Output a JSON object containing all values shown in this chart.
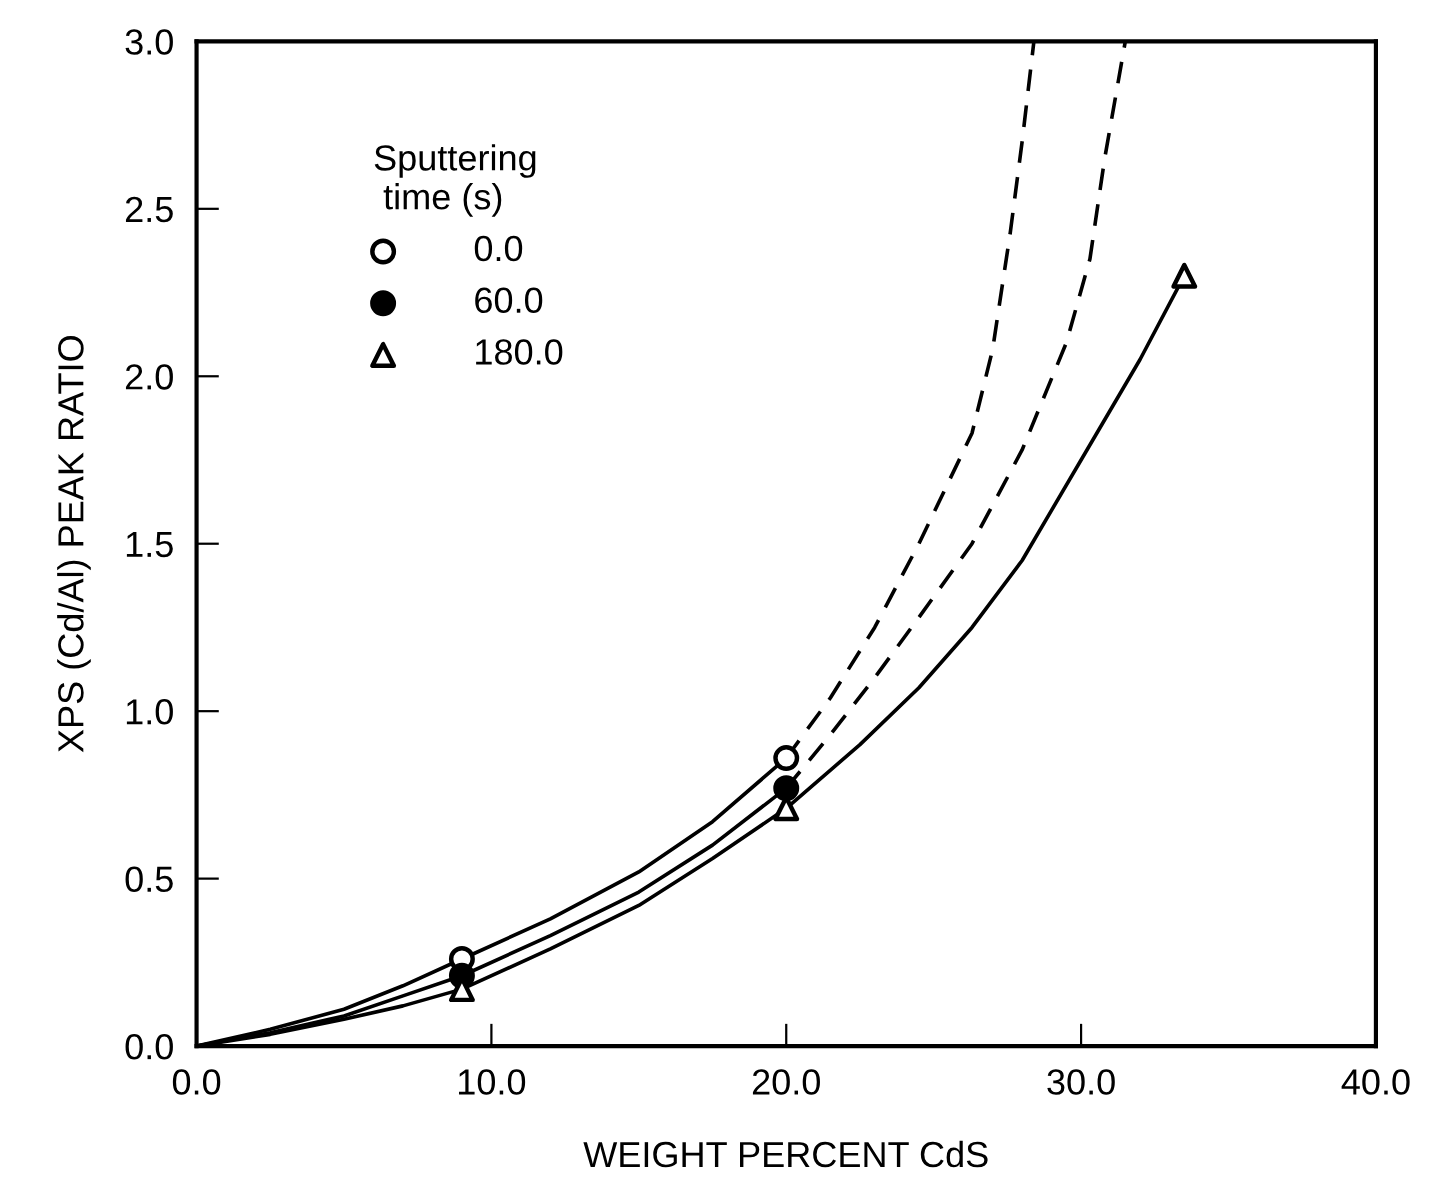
{
  "chart_data": {
    "type": "scatter",
    "xlabel": "WEIGHT PERCENT CdS",
    "ylabel": "XPS (Cd/Al) PEAK RATIO",
    "legend_title": "Sputtering\n time (s)",
    "legend": "top left",
    "xlim": [
      0,
      40
    ],
    "ylim": [
      0,
      3
    ],
    "xticks": [
      {
        "value": 0,
        "label": "0.0"
      },
      {
        "value": 10,
        "label": "10.0"
      },
      {
        "value": 20,
        "label": "20.0"
      },
      {
        "value": 30,
        "label": "30.0"
      },
      {
        "value": 40,
        "label": "40.0"
      }
    ],
    "yticks": [
      {
        "value": 0,
        "label": "0.0"
      },
      {
        "value": 0.5,
        "label": "0.5"
      },
      {
        "value": 1,
        "label": "1.0"
      },
      {
        "value": 1.5,
        "label": "1.5"
      },
      {
        "value": 2,
        "label": "2.0"
      },
      {
        "value": 2.5,
        "label": "2.5"
      },
      {
        "value": 3,
        "label": "3.0"
      }
    ],
    "grid": false,
    "series": [
      {
        "type": "line",
        "color": "#000000",
        "line_style": "solid",
        "marker": "none",
        "x": [
          0,
          2.5,
          5,
          7,
          9,
          12,
          15,
          17.5,
          20
        ],
        "values": [
          0,
          0.05,
          0.11,
          0.18,
          0.26,
          0.38,
          0.52,
          0.67,
          0.86
        ]
      },
      {
        "type": "line",
        "color": "#000000",
        "line_style": "dashed",
        "marker": "none",
        "x": [
          20,
          21.5,
          23,
          24.5,
          26.3,
          27,
          27.6,
          28,
          28.4
        ],
        "values": [
          0.86,
          1.04,
          1.25,
          1.5,
          1.83,
          2.08,
          2.43,
          2.7,
          3.0
        ]
      },
      {
        "type": "line",
        "color": "#000000",
        "line_style": "solid",
        "marker": "none",
        "x": [
          0,
          2.5,
          5,
          7,
          9,
          12,
          15,
          17.5,
          20
        ],
        "values": [
          0,
          0.04,
          0.09,
          0.15,
          0.21,
          0.33,
          0.46,
          0.6,
          0.77
        ]
      },
      {
        "type": "line",
        "color": "#000000",
        "line_style": "dashed",
        "marker": "none",
        "x": [
          20,
          21.5,
          23,
          24.5,
          26.3,
          28,
          29.5,
          30.3,
          30.8,
          31.5
        ],
        "values": [
          0.77,
          0.93,
          1.1,
          1.28,
          1.5,
          1.78,
          2.1,
          2.35,
          2.65,
          3.0
        ]
      },
      {
        "type": "line",
        "color": "#000000",
        "line_style": "solid",
        "marker": "none",
        "x": [
          0,
          2.5,
          5,
          7,
          9,
          12,
          15,
          17.5,
          20,
          22.5,
          24.5,
          26.3,
          28,
          30,
          32,
          33.5
        ],
        "values": [
          0,
          0.035,
          0.08,
          0.12,
          0.17,
          0.29,
          0.42,
          0.56,
          0.71,
          0.9,
          1.07,
          1.25,
          1.45,
          1.75,
          2.05,
          2.3
        ]
      },
      {
        "name": "0.0",
        "color": "#ffffff",
        "marker": "circle",
        "x": [
          9,
          20
        ],
        "values": [
          0.26,
          0.86
        ]
      },
      {
        "name": "60.0",
        "color": "#000000",
        "marker": "circle",
        "x": [
          9,
          20
        ],
        "values": [
          0.21,
          0.77
        ]
      },
      {
        "name": "180.0",
        "color": "#ffffff",
        "marker": "triangle",
        "x": [
          9,
          20,
          33.5
        ],
        "values": [
          0.17,
          0.71,
          2.3
        ]
      }
    ]
  }
}
